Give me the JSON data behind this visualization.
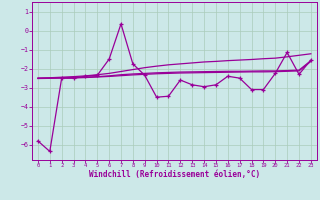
{
  "xlabel": "Windchill (Refroidissement éolien,°C)",
  "x": [
    0,
    1,
    2,
    3,
    4,
    5,
    6,
    7,
    8,
    9,
    10,
    11,
    12,
    13,
    14,
    15,
    16,
    17,
    18,
    19,
    20,
    21,
    22,
    23
  ],
  "line_jagged": [
    -5.8,
    -6.35,
    -2.5,
    -2.5,
    -2.4,
    -2.35,
    -1.5,
    0.35,
    -1.75,
    -2.35,
    -3.5,
    -3.45,
    -2.6,
    -2.85,
    -2.95,
    -2.85,
    -2.4,
    -2.5,
    -3.1,
    -3.1,
    -2.25,
    -1.15,
    -2.3,
    -1.55
  ],
  "line_upper": [
    -2.5,
    -2.48,
    -2.45,
    -2.42,
    -2.38,
    -2.32,
    -2.25,
    -2.15,
    -2.05,
    -1.95,
    -1.87,
    -1.8,
    -1.75,
    -1.7,
    -1.65,
    -1.62,
    -1.58,
    -1.55,
    -1.52,
    -1.48,
    -1.45,
    -1.38,
    -1.3,
    -1.22
  ],
  "line_mid": [
    -2.5,
    -2.49,
    -2.48,
    -2.47,
    -2.45,
    -2.42,
    -2.38,
    -2.32,
    -2.28,
    -2.25,
    -2.22,
    -2.2,
    -2.18,
    -2.17,
    -2.16,
    -2.15,
    -2.14,
    -2.14,
    -2.13,
    -2.12,
    -2.12,
    -2.1,
    -2.08,
    -1.58
  ],
  "line_lower": [
    -2.52,
    -2.51,
    -2.5,
    -2.49,
    -2.47,
    -2.44,
    -2.41,
    -2.37,
    -2.33,
    -2.3,
    -2.27,
    -2.25,
    -2.23,
    -2.22,
    -2.21,
    -2.2,
    -2.19,
    -2.18,
    -2.17,
    -2.17,
    -2.16,
    -2.14,
    -2.12,
    -1.62
  ],
  "color": "#990099",
  "bg_color": "#cce8e8",
  "grid_color": "#aaccbb",
  "ylim_min": -6.8,
  "ylim_max": 1.5,
  "yticks": [
    -6,
    -5,
    -4,
    -3,
    -2,
    -1,
    0,
    1
  ],
  "xticks": [
    0,
    1,
    2,
    3,
    4,
    5,
    6,
    7,
    8,
    9,
    10,
    11,
    12,
    13,
    14,
    15,
    16,
    17,
    18,
    19,
    20,
    21,
    22,
    23
  ]
}
